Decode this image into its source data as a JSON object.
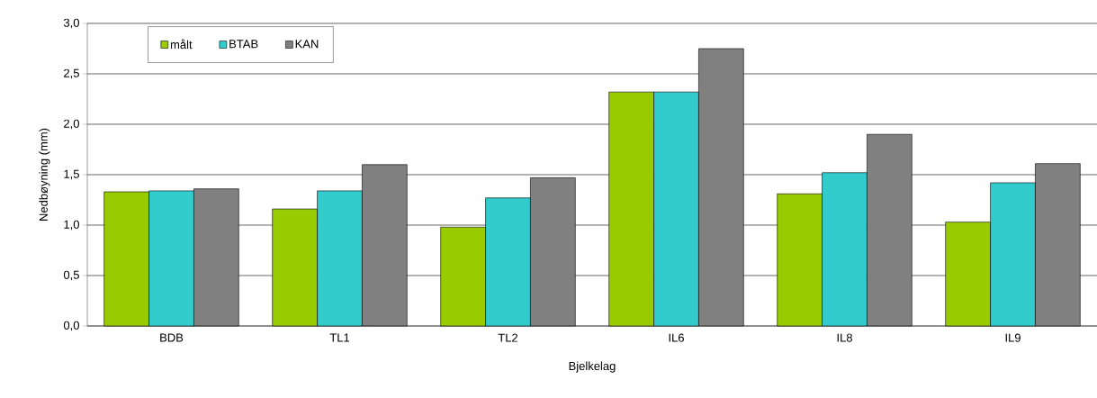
{
  "chart_data": {
    "type": "bar",
    "xlabel": "Bjelkelag",
    "ylabel": "Nedbøyning (mm)",
    "categories": [
      "BDB",
      "TL1",
      "TL2",
      "IL6",
      "IL8",
      "IL9"
    ],
    "series": [
      {
        "name": "målt",
        "color": "#99cc00",
        "values": [
          1.33,
          1.16,
          0.98,
          2.32,
          1.31,
          1.03
        ]
      },
      {
        "name": "BTAB",
        "color": "#33cccc",
        "values": [
          1.34,
          1.34,
          1.27,
          2.32,
          1.52,
          1.42
        ]
      },
      {
        "name": "KAN",
        "color": "#808080",
        "values": [
          1.36,
          1.6,
          1.47,
          2.75,
          1.9,
          1.61
        ]
      }
    ],
    "ylim": [
      0,
      3
    ],
    "yticks": [
      {
        "value": 0,
        "label": "0,0"
      },
      {
        "value": 0.5,
        "label": "0,5"
      },
      {
        "value": 1,
        "label": "1,0"
      },
      {
        "value": 1.5,
        "label": "1,5"
      },
      {
        "value": 2,
        "label": "2,0"
      },
      {
        "value": 2.5,
        "label": "2,5"
      },
      {
        "value": 3,
        "label": "3,0"
      }
    ],
    "grid": "y",
    "legend": "top left"
  }
}
